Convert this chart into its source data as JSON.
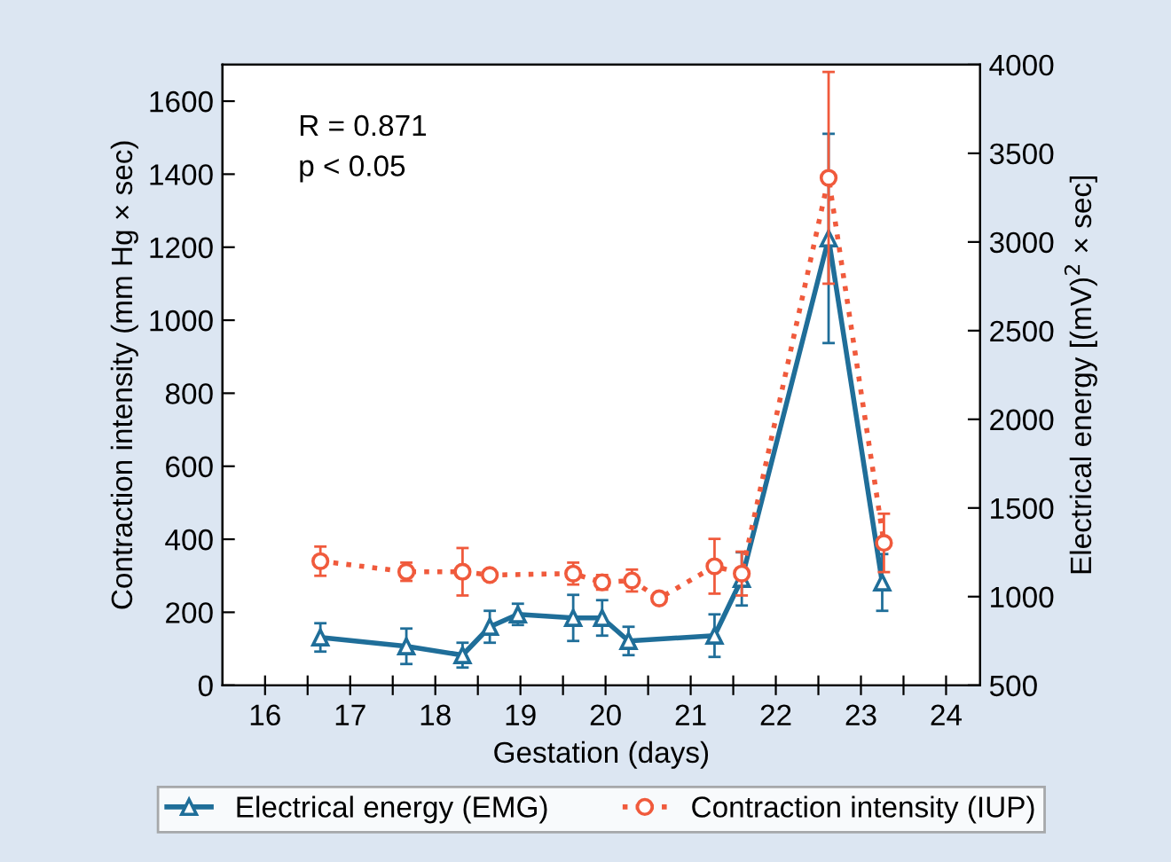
{
  "chart_data": {
    "type": "line",
    "xlabel": "Gestation (days)",
    "ylabel": "Contraction intensity (mm Hg × sec)",
    "y2label": "Electrical energy [(mV)$^{2}$ × sec]",
    "annotations": [
      "R = 0.871",
      "p < 0.05"
    ],
    "xlim": [
      15.5,
      24.4
    ],
    "ylim": [
      0,
      1700
    ],
    "y2lim": [
      500,
      4000
    ],
    "xticks": [
      16,
      {
        "value": 16.5,
        "label": null
      },
      17,
      {
        "value": 17.5,
        "label": null
      },
      18,
      {
        "value": 18.5,
        "label": null
      },
      19,
      {
        "value": 19.5,
        "label": null
      },
      20,
      {
        "value": 20.5,
        "label": null
      },
      21,
      {
        "value": 21.5,
        "label": null
      },
      22,
      {
        "value": 22.5,
        "label": null
      },
      23,
      {
        "value": 23.5,
        "label": null
      },
      24
    ],
    "yticks": [
      0,
      200,
      400,
      600,
      800,
      1000,
      1200,
      1400,
      1600
    ],
    "y2ticks": [
      500,
      1000,
      1500,
      2000,
      2500,
      3000,
      3500,
      4000
    ],
    "grid": false,
    "legend": "bottom",
    "series": [
      {
        "name": "Electrical energy (EMG)",
        "color": "#1f6e99",
        "axis": "y2",
        "marker": "triangle",
        "line_style": "solid",
        "x": [
          16.65,
          17.66,
          18.32,
          18.64,
          18.97,
          19.62,
          19.96,
          20.27,
          21.28,
          21.6,
          22.62,
          23.25
        ],
        "values": [
          770,
          720,
          670,
          830,
          900,
          880,
          880,
          750,
          780,
          1100,
          3020,
          1080
        ],
        "errors": [
          80,
          100,
          70,
          90,
          60,
          130,
          100,
          80,
          120,
          150,
          590,
          160
        ]
      },
      {
        "name": "Contraction intensity (IUP)",
        "color": "#f05a3c",
        "marker": "circle",
        "line_style": "dotted",
        "x": [
          16.65,
          17.66,
          18.32,
          18.64,
          19.62,
          19.96,
          20.31,
          20.63,
          21.28,
          21.6,
          22.62,
          23.27
        ],
        "values": [
          340,
          311,
          311,
          302,
          306,
          282,
          287,
          238,
          326,
          306,
          1390,
          390
        ],
        "errors": [
          40,
          25,
          65,
          null,
          30,
          20,
          30,
          null,
          75,
          60,
          290,
          80
        ]
      }
    ]
  }
}
